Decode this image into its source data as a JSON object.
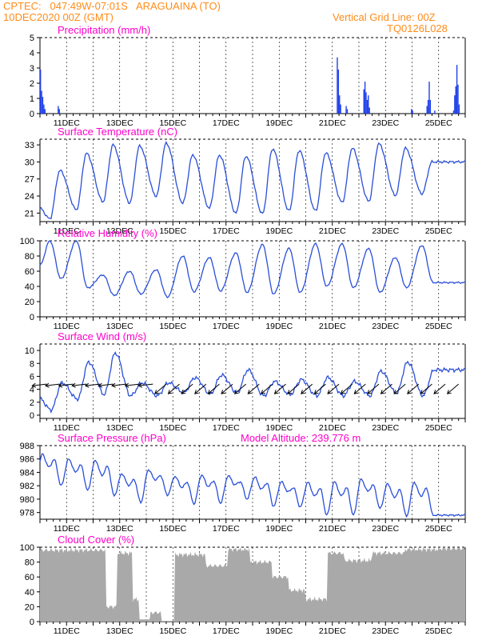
{
  "header": {
    "line1_left": "CPTEC:   047:49W-07:01S   ARAGUAINA (TO)",
    "line2_left": "10DEC2020 00Z (GMT)",
    "line2_right": "Vertical Grid Line: 00Z",
    "line3_right": "TQ0126L028"
  },
  "colors": {
    "header": "#ff8c1a",
    "title": "#ff00cc",
    "line": "#2a4fd8",
    "bar": "#1f3fe8",
    "cloud": "#a9a9a9"
  },
  "chart_data": [
    {
      "type": "bar",
      "title": "Precipitation (mm/h)",
      "x_tick_labels": [
        "11DEC",
        "13DEC",
        "15DEC",
        "17DEC",
        "19DEC",
        "21DEC",
        "23DEC",
        "25DEC"
      ],
      "ylim": [
        0,
        5
      ],
      "yticks": [
        0,
        1,
        2,
        3,
        4,
        5
      ],
      "x_unit": "hours since 10DEC2020 00Z",
      "values": [
        {
          "x": 0,
          "y": 2.9
        },
        {
          "x": 1,
          "y": 1.5
        },
        {
          "x": 2,
          "y": 1.1
        },
        {
          "x": 3,
          "y": 0.6
        },
        {
          "x": 4,
          "y": 0.3
        },
        {
          "x": 16,
          "y": 0.5
        },
        {
          "x": 17,
          "y": 0.3
        },
        {
          "x": 268,
          "y": 3.7
        },
        {
          "x": 269,
          "y": 2.9
        },
        {
          "x": 270,
          "y": 1.2
        },
        {
          "x": 271,
          "y": 0.6
        },
        {
          "x": 276,
          "y": 0.5
        },
        {
          "x": 277,
          "y": 0.3
        },
        {
          "x": 292,
          "y": 1.6
        },
        {
          "x": 293,
          "y": 2.1
        },
        {
          "x": 294,
          "y": 1.4
        },
        {
          "x": 295,
          "y": 0.9
        },
        {
          "x": 296,
          "y": 1.2
        },
        {
          "x": 297,
          "y": 0.4
        },
        {
          "x": 335,
          "y": 0.3
        },
        {
          "x": 336,
          "y": 0.2
        },
        {
          "x": 349,
          "y": 0.5
        },
        {
          "x": 350,
          "y": 0.9
        },
        {
          "x": 351,
          "y": 2.1
        },
        {
          "x": 352,
          "y": 0.9
        },
        {
          "x": 356,
          "y": 0.2
        },
        {
          "x": 373,
          "y": 0.2
        },
        {
          "x": 374,
          "y": 1.2
        },
        {
          "x": 375,
          "y": 1.8
        },
        {
          "x": 376,
          "y": 3.2
        },
        {
          "x": 377,
          "y": 1.9
        },
        {
          "x": 378,
          "y": 0.6
        }
      ]
    },
    {
      "type": "line",
      "title": "Surface Temperature (nC)",
      "x_tick_labels": [
        "11DEC",
        "13DEC",
        "15DEC",
        "17DEC",
        "19DEC",
        "21DEC",
        "23DEC",
        "25DEC"
      ],
      "ylim": [
        19.5,
        34
      ],
      "yticks": [
        21,
        24,
        27,
        30,
        33
      ],
      "daily_min_max": [
        {
          "day": "10DEC",
          "min": 20.0,
          "max": 28.5
        },
        {
          "day": "11DEC",
          "min": 21.6,
          "max": 31.5
        },
        {
          "day": "12DEC",
          "min": 23.0,
          "max": 33.0
        },
        {
          "day": "13DEC",
          "min": 22.8,
          "max": 32.8
        },
        {
          "day": "14DEC",
          "min": 24.0,
          "max": 33.3
        },
        {
          "day": "15DEC",
          "min": 22.8,
          "max": 31.2
        },
        {
          "day": "16DEC",
          "min": 21.9,
          "max": 31.2
        },
        {
          "day": "17DEC",
          "min": 21.0,
          "max": 31.0
        },
        {
          "day": "18DEC",
          "min": 20.9,
          "max": 32.3
        },
        {
          "day": "19DEC",
          "min": 21.4,
          "max": 32.0
        },
        {
          "day": "20DEC",
          "min": 21.4,
          "max": 31.6
        },
        {
          "day": "21DEC",
          "min": 22.9,
          "max": 32.4
        },
        {
          "day": "22DEC",
          "min": 23.1,
          "max": 33.2
        },
        {
          "day": "23DEC",
          "min": 24.1,
          "max": 32.4
        },
        {
          "day": "24DEC",
          "min": 24.4,
          "max": 30.0
        }
      ]
    },
    {
      "type": "line",
      "title": "Relative Humidity (%)",
      "x_tick_labels": [
        "11DEC",
        "13DEC",
        "15DEC",
        "17DEC",
        "19DEC",
        "21DEC",
        "23DEC",
        "25DEC"
      ],
      "ylim": [
        0,
        100
      ],
      "yticks": [
        0,
        20,
        40,
        60,
        80,
        100
      ],
      "daily_max_min": [
        {
          "day": "10DEC",
          "max": 100,
          "min": 50
        },
        {
          "day": "11DEC",
          "max": 100,
          "min": 38
        },
        {
          "day": "12DEC",
          "max": 55,
          "min": 28
        },
        {
          "day": "13DEC",
          "max": 60,
          "min": 30
        },
        {
          "day": "14DEC",
          "max": 62,
          "min": 26
        },
        {
          "day": "15DEC",
          "max": 80,
          "min": 33
        },
        {
          "day": "16DEC",
          "max": 78,
          "min": 34
        },
        {
          "day": "17DEC",
          "max": 84,
          "min": 32
        },
        {
          "day": "18DEC",
          "max": 95,
          "min": 30
        },
        {
          "day": "19DEC",
          "max": 90,
          "min": 32
        },
        {
          "day": "20DEC",
          "max": 96,
          "min": 40
        },
        {
          "day": "21DEC",
          "max": 96,
          "min": 38
        },
        {
          "day": "22DEC",
          "max": 90,
          "min": 32
        },
        {
          "day": "23DEC",
          "max": 78,
          "min": 38
        },
        {
          "day": "24DEC",
          "max": 94,
          "min": 45
        }
      ]
    },
    {
      "type": "line",
      "title": "Surface Wind (m/s)",
      "x_tick_labels": [
        "11DEC",
        "13DEC",
        "15DEC",
        "17DEC",
        "19DEC",
        "21DEC",
        "23DEC",
        "25DEC"
      ],
      "ylim": [
        -0.5,
        11
      ],
      "yticks": [
        0,
        2,
        4,
        6,
        8,
        10
      ],
      "daily_max_min": [
        {
          "day": "10DEC",
          "max": 5.0,
          "min": 0.8
        },
        {
          "day": "11DEC",
          "max": 8.2,
          "min": 2.5
        },
        {
          "day": "12DEC",
          "max": 9.6,
          "min": 3.2
        },
        {
          "day": "13DEC",
          "max": 5.0,
          "min": 3.0
        },
        {
          "day": "14DEC",
          "max": 5.0,
          "min": 3.0
        },
        {
          "day": "15DEC",
          "max": 5.8,
          "min": 3.5
        },
        {
          "day": "16DEC",
          "max": 6.2,
          "min": 3.3
        },
        {
          "day": "17DEC",
          "max": 7.0,
          "min": 3.5
        },
        {
          "day": "18DEC",
          "max": 5.2,
          "min": 3.0
        },
        {
          "day": "19DEC",
          "max": 5.5,
          "min": 3.2
        },
        {
          "day": "20DEC",
          "max": 5.8,
          "min": 3.0
        },
        {
          "day": "21DEC",
          "max": 5.2,
          "min": 3.0
        },
        {
          "day": "22DEC",
          "max": 6.8,
          "min": 3.0
        },
        {
          "day": "23DEC",
          "max": 8.2,
          "min": 3.4
        },
        {
          "day": "24DEC",
          "max": 7.0,
          "min": 3.0
        }
      ],
      "wind_vectors": {
        "every_hours": 12,
        "directions": [
          "toward SW, mostly down-left; first days mostly left"
        ]
      }
    },
    {
      "type": "line",
      "title": "Surface Pressure (hPa)",
      "annotation": "Model Altitude: 239.776 m",
      "x_tick_labels": [
        "11DEC",
        "13DEC",
        "15DEC",
        "17DEC",
        "19DEC",
        "21DEC",
        "23DEC",
        "25DEC"
      ],
      "ylim": [
        977,
        988
      ],
      "yticks": [
        978,
        980,
        982,
        984,
        986,
        988
      ],
      "daily_levels": [
        {
          "day": "10DEC",
          "high": 986.8,
          "low": 982.0
        },
        {
          "day": "11DEC",
          "high": 986.0,
          "low": 981.3
        },
        {
          "day": "12DEC",
          "high": 985.8,
          "low": 980.5
        },
        {
          "day": "13DEC",
          "high": 983.8,
          "low": 979.5
        },
        {
          "day": "14DEC",
          "high": 984.4,
          "low": 980.6
        },
        {
          "day": "15DEC",
          "high": 983.4,
          "low": 979.3
        },
        {
          "day": "16DEC",
          "high": 983.6,
          "low": 979.4
        },
        {
          "day": "17DEC",
          "high": 983.5,
          "low": 980.0
        },
        {
          "day": "18DEC",
          "high": 983.3,
          "low": 978.9
        },
        {
          "day": "19DEC",
          "high": 982.6,
          "low": 978.8
        },
        {
          "day": "20DEC",
          "high": 982.5,
          "low": 977.6
        },
        {
          "day": "21DEC",
          "high": 982.6,
          "low": 977.6
        },
        {
          "day": "22DEC",
          "high": 983.0,
          "low": 978.6
        },
        {
          "day": "23DEC",
          "high": 982.3,
          "low": 977.4
        },
        {
          "day": "24DEC",
          "high": 982.5,
          "low": 977.6
        }
      ]
    },
    {
      "type": "area",
      "title": "Cloud Cover (%)",
      "x_tick_labels": [
        "11DEC",
        "13DEC",
        "15DEC",
        "17DEC",
        "19DEC",
        "21DEC",
        "23DEC",
        "25DEC"
      ],
      "ylim": [
        0,
        100
      ],
      "yticks": [
        0,
        20,
        40,
        60,
        80,
        100
      ],
      "segments_percent": [
        {
          "from_hour": 0,
          "to_hour": 60,
          "level": 96
        },
        {
          "from_hour": 60,
          "to_hour": 70,
          "level": 20
        },
        {
          "from_hour": 70,
          "to_hour": 84,
          "level": 92
        },
        {
          "from_hour": 84,
          "to_hour": 90,
          "level": 30
        },
        {
          "from_hour": 90,
          "to_hour": 100,
          "level": 3
        },
        {
          "from_hour": 100,
          "to_hour": 110,
          "level": 12
        },
        {
          "from_hour": 110,
          "to_hour": 122,
          "level": 1
        },
        {
          "from_hour": 122,
          "to_hour": 150,
          "level": 90
        },
        {
          "from_hour": 150,
          "to_hour": 170,
          "level": 75
        },
        {
          "from_hour": 170,
          "to_hour": 190,
          "level": 97
        },
        {
          "from_hour": 190,
          "to_hour": 210,
          "level": 80
        },
        {
          "from_hour": 210,
          "to_hour": 225,
          "level": 60
        },
        {
          "from_hour": 225,
          "to_hour": 240,
          "level": 42
        },
        {
          "from_hour": 240,
          "to_hour": 260,
          "level": 30
        },
        {
          "from_hour": 260,
          "to_hour": 275,
          "level": 92
        },
        {
          "from_hour": 275,
          "to_hour": 300,
          "level": 82
        },
        {
          "from_hour": 300,
          "to_hour": 330,
          "level": 92
        },
        {
          "from_hour": 330,
          "to_hour": 360,
          "level": 97
        },
        {
          "from_hour": 360,
          "to_hour": 384,
          "level": 98
        }
      ]
    }
  ]
}
